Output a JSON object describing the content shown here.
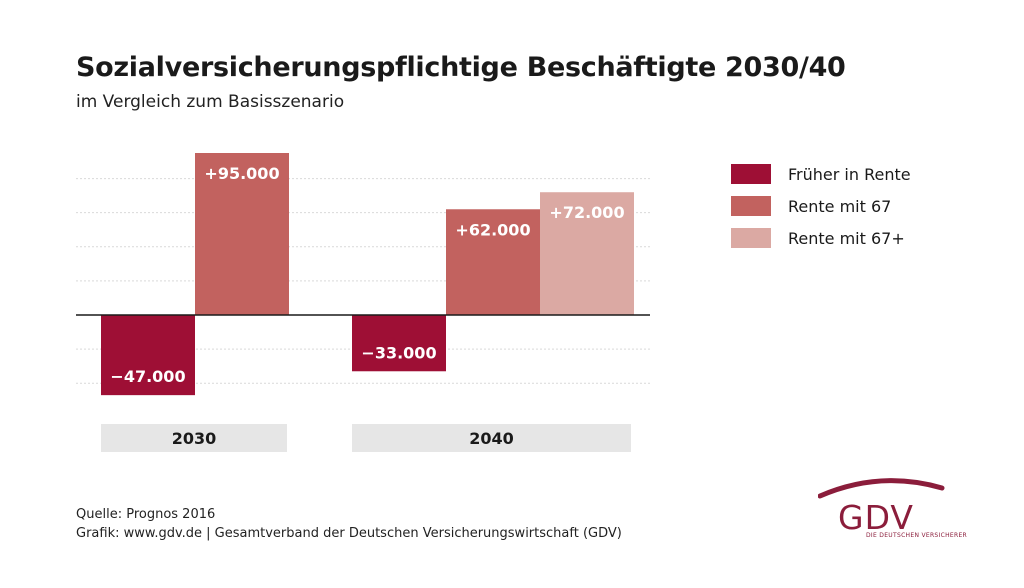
{
  "chart_data": {
    "type": "bar",
    "title": "Sozialversicherungspflichtige Beschäftigte 2030/40",
    "subtitle": "im Vergleich zum Basisszenario",
    "categories": [
      "2030",
      "2040"
    ],
    "series": [
      {
        "name": "Früher in Rente",
        "color": "#9e0f35",
        "values": [
          -47000,
          -33000
        ],
        "labels": [
          "−47.000",
          "−33.000"
        ]
      },
      {
        "name": "Rente mit 67",
        "color": "#c2625f",
        "values": [
          95000,
          62000
        ],
        "labels": [
          "+95.000",
          "+62.000"
        ]
      },
      {
        "name": "Rente mit 67+",
        "color": "#dba9a3",
        "values": [
          null,
          72000
        ],
        "labels": [
          "",
          "+72.000"
        ]
      }
    ],
    "ylim": [
      -47000,
      95000
    ],
    "grid": true,
    "legend_position": "right"
  },
  "footer": {
    "source": "Quelle: Prognos 2016",
    "credit": "Grafik: www.gdv.de | Gesamtverband der Deutschen Versicherungswirtschaft (GDV)"
  },
  "logo": {
    "name": "GDV",
    "tagline": "DIE DEUTSCHEN VERSICHERER",
    "color": "#8b1d3b"
  }
}
